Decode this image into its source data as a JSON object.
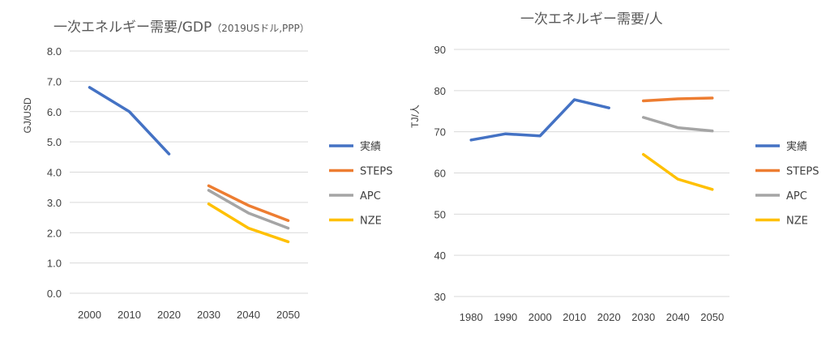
{
  "chart_data": [
    {
      "type": "line",
      "title": "一次エネルギー需要/GDP",
      "title_note": "（2019USドル,PPP）",
      "ylabel": "GJ/USD",
      "xlabel": "",
      "categories": [
        "2000",
        "2010",
        "2020",
        "2030",
        "2040",
        "2050"
      ],
      "ylim": [
        0,
        8
      ],
      "yticks": [
        "0.0",
        "1.0",
        "2.0",
        "3.0",
        "4.0",
        "5.0",
        "6.0",
        "7.0",
        "8.0"
      ],
      "grid": true,
      "legend_position": "right",
      "series": [
        {
          "name": "実績",
          "color": "#4472C4",
          "values": [
            6.8,
            6.0,
            4.6,
            null,
            null,
            null
          ]
        },
        {
          "name": "STEPS",
          "color": "#ED7D31",
          "values": [
            null,
            null,
            null,
            3.55,
            2.9,
            2.4
          ]
        },
        {
          "name": "APC",
          "color": "#A5A5A5",
          "values": [
            null,
            null,
            null,
            3.4,
            2.65,
            2.15
          ]
        },
        {
          "name": "NZE",
          "color": "#FFC000",
          "values": [
            null,
            null,
            null,
            2.95,
            2.15,
            1.7
          ]
        }
      ]
    },
    {
      "type": "line",
      "title": "一次エネルギー需要/人",
      "ylabel": "TJ/人",
      "xlabel": "",
      "categories": [
        "1980",
        "1990",
        "2000",
        "2010",
        "2020",
        "2030",
        "2040",
        "2050"
      ],
      "ylim": [
        30,
        90
      ],
      "yticks": [
        "30",
        "40",
        "50",
        "60",
        "70",
        "80",
        "90"
      ],
      "grid": true,
      "legend_position": "right",
      "series": [
        {
          "name": "実績",
          "color": "#4472C4",
          "values": [
            68.0,
            69.5,
            69.0,
            77.8,
            75.8,
            null,
            null,
            null
          ]
        },
        {
          "name": "STEPS",
          "color": "#ED7D31",
          "values": [
            null,
            null,
            null,
            null,
            null,
            77.5,
            78.0,
            78.2
          ]
        },
        {
          "name": "APC",
          "color": "#A5A5A5",
          "values": [
            null,
            null,
            null,
            null,
            null,
            73.5,
            71.0,
            70.2
          ]
        },
        {
          "name": "NZE",
          "color": "#FFC000",
          "values": [
            null,
            null,
            null,
            null,
            null,
            64.5,
            58.5,
            56.0
          ]
        }
      ]
    }
  ]
}
